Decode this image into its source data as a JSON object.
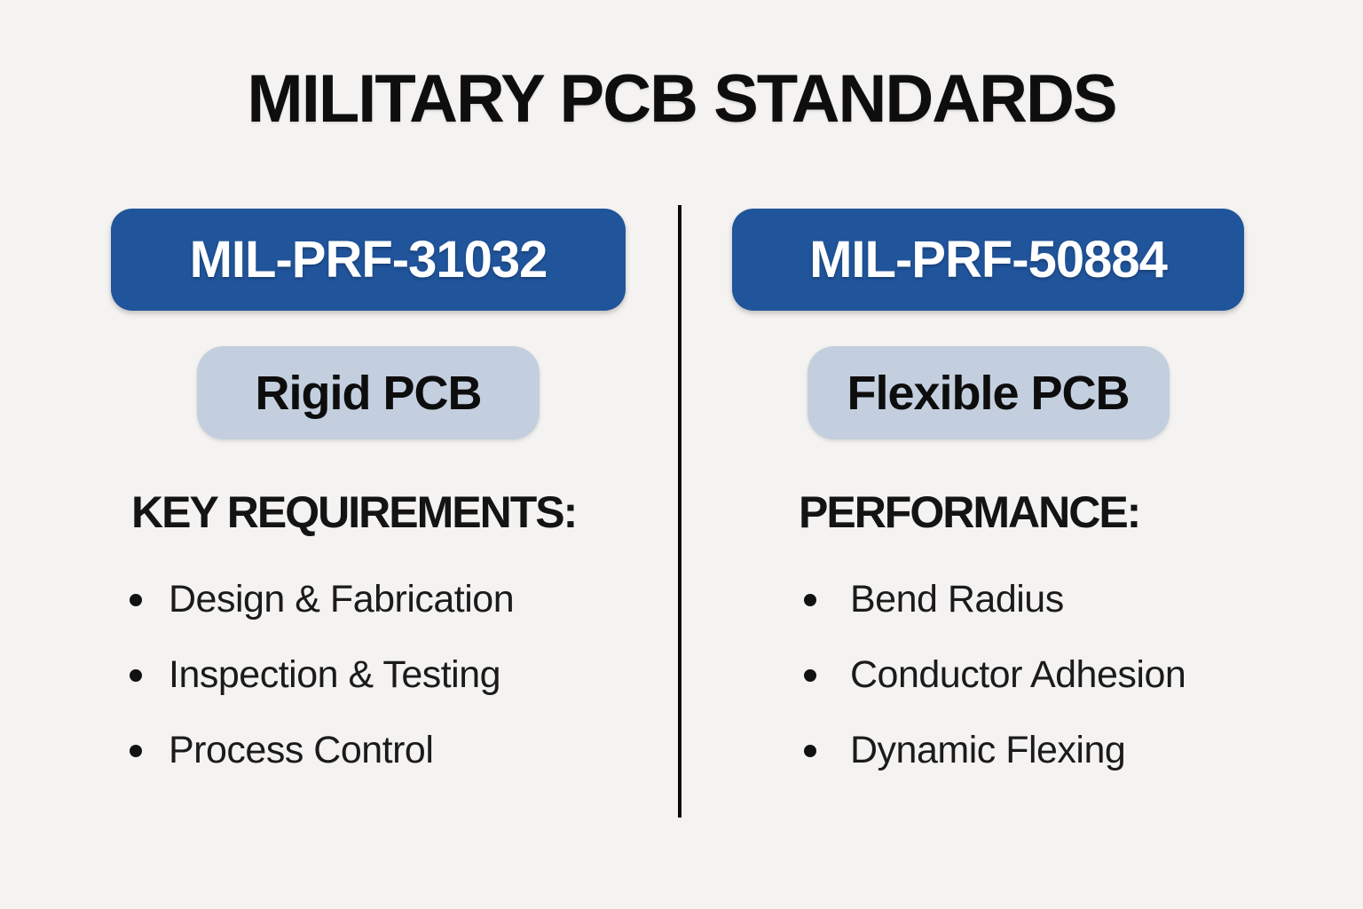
{
  "infographic": {
    "title": "MILITARY PCB STANDARDS"
  },
  "colors": {
    "background": "#f4f3f1",
    "primary_blue": "#20549b",
    "badge_blue": "#c3cfde",
    "button_text": "#ffffff",
    "text_dark": "#141414",
    "divider": "#0a0a0a"
  },
  "columns": [
    {
      "standard": "MIL-PRF-31032",
      "pcb_type": "Rigid PCB",
      "section_heading": "KEY REQUIREMENTS:",
      "items": [
        "Design & Fabrication",
        "Inspection & Testing",
        "Process Control"
      ]
    },
    {
      "standard": "MIL-PRF-50884",
      "pcb_type": "Flexible PCB",
      "section_heading": "PERFORMANCE:",
      "items": [
        "Bend Radius",
        "Conductor Adhesion",
        "Dynamic Flexing"
      ]
    }
  ]
}
